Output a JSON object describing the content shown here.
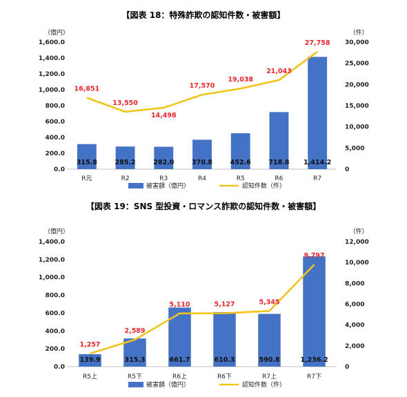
{
  "colors": {
    "bar": "#4472c4",
    "line": "#f0c419",
    "line_label": "#e8262b",
    "axis": "#bfbfbf"
  },
  "chart_data": [
    {
      "type": "bar",
      "title": "【図表 18：特殊詐欺の認知件数・被害額】",
      "categories": [
        "R元",
        "R2",
        "R3",
        "R4",
        "R5",
        "R6",
        "R7"
      ],
      "y_left_unit": "（億円）",
      "y_right_unit": "（件）",
      "y_left_ticks": [
        "0.0",
        "200.0",
        "400.0",
        "600.0",
        "800.0",
        "1,000.0",
        "1,200.0",
        "1,400.0",
        "1,600.0"
      ],
      "y_right_ticks": [
        "0",
        "5,000",
        "10,000",
        "15,000",
        "20,000",
        "25,000",
        "30,000"
      ],
      "ylim_left": [
        0,
        1600
      ],
      "ylim_right": [
        0,
        30000
      ],
      "series": [
        {
          "name": "被害額（億円）",
          "type": "bar",
          "axis": "left",
          "values": [
            315.8,
            285.2,
            282.0,
            370.8,
            452.6,
            718.8,
            1414.2
          ],
          "labels": [
            "315.8",
            "285.2",
            "282.0",
            "370.8",
            "452.6",
            "718.8",
            "1,414.2"
          ]
        },
        {
          "name": "認知件数（件）",
          "type": "line",
          "axis": "right",
          "values": [
            16851,
            13550,
            14498,
            17570,
            19038,
            21043,
            27758
          ],
          "labels": [
            "16,851",
            "13,550",
            "14,498",
            "17,570",
            "19,038",
            "21,043",
            "27,758"
          ]
        }
      ],
      "legend": "bottom"
    },
    {
      "type": "bar",
      "title": "【図表 19：SNS 型投資・ロマンス詐欺の認知件数・被害額】",
      "categories": [
        "R5上",
        "R5下",
        "R6上",
        "R6下",
        "R7上",
        "R7下"
      ],
      "y_left_unit": "（億円）",
      "y_right_unit": "（件）",
      "y_left_ticks": [
        "0.0",
        "200.0",
        "400.0",
        "600.0",
        "800.0",
        "1,000.0",
        "1,200.0",
        "1,400.0"
      ],
      "y_right_ticks": [
        "0",
        "2,000",
        "4,000",
        "6,000",
        "8,000",
        "10,000",
        "12,000"
      ],
      "ylim_left": [
        0,
        1400
      ],
      "ylim_right": [
        0,
        12000
      ],
      "series": [
        {
          "name": "被害額（億円）",
          "type": "bar",
          "axis": "left",
          "values": [
            139.9,
            315.3,
            661.7,
            610.3,
            590.8,
            1236.2
          ],
          "labels": [
            "139.9",
            "315.3",
            "661.7",
            "610.3",
            "590.8",
            "1,236.2"
          ]
        },
        {
          "name": "認知件数（件）",
          "type": "line",
          "axis": "right",
          "values": [
            1257,
            2589,
            5110,
            5127,
            5345,
            9797
          ],
          "labels": [
            "1,257",
            "2,589",
            "5,110",
            "5,127",
            "5,345",
            "9,797"
          ]
        }
      ],
      "legend": "bottom"
    }
  ]
}
